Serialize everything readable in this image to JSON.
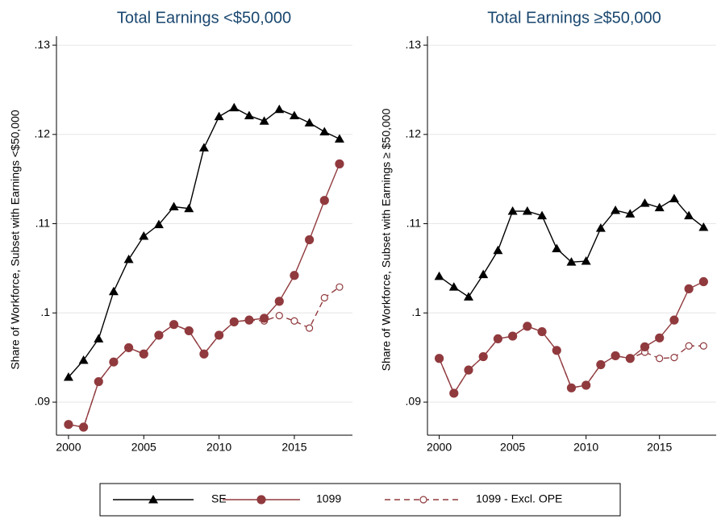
{
  "chart_data": [
    {
      "type": "line",
      "title": "Total Earnings <$50,000",
      "y_label": "Share of Workforce, Subset with Earnings <$50,000",
      "x": [
        2000,
        2001,
        2002,
        2003,
        2004,
        2005,
        2006,
        2007,
        2008,
        2009,
        2010,
        2011,
        2012,
        2013,
        2014,
        2015,
        2016,
        2017,
        2018
      ],
      "series": [
        {
          "name": "1099 - Excl. OPE",
          "color": "#903a3e",
          "marker": "hollow-circle",
          "dashed": true,
          "values": [
            0.0875,
            0.0872,
            0.0923,
            0.0945,
            0.0961,
            0.0954,
            0.0975,
            0.0987,
            0.098,
            0.0954,
            0.0975,
            0.099,
            0.0992,
            0.0991,
            0.0997,
            0.0991,
            0.0983,
            0.1017,
            0.1029
          ]
        },
        {
          "name": "1099",
          "color": "#903a3e",
          "marker": "circle",
          "dashed": false,
          "values": [
            0.0875,
            0.0872,
            0.0923,
            0.0945,
            0.0961,
            0.0954,
            0.0975,
            0.0987,
            0.098,
            0.0954,
            0.0975,
            0.099,
            0.0992,
            0.0994,
            0.1013,
            0.1042,
            0.1082,
            0.1126,
            0.1167
          ]
        },
        {
          "name": "SE",
          "color": "#000000",
          "marker": "triangle",
          "dashed": false,
          "values": [
            0.0928,
            0.0947,
            0.0971,
            0.1024,
            0.106,
            0.1086,
            0.1099,
            0.1119,
            0.1117,
            0.1185,
            0.122,
            0.123,
            0.1221,
            0.1215,
            0.1228,
            0.1221,
            0.1213,
            0.1203,
            0.1195
          ]
        }
      ],
      "xlim": [
        1999.2,
        2018.86
      ],
      "xticks": [
        2000,
        2005,
        2010,
        2015
      ],
      "ylim": [
        0.0863,
        0.131
      ],
      "yticks": [
        {
          "value": 0.09,
          "label": ".09"
        },
        {
          "value": 0.1,
          "label": ".1"
        },
        {
          "value": 0.11,
          "label": ".11"
        },
        {
          "value": 0.12,
          "label": ".12"
        },
        {
          "value": 0.13,
          "label": ".13"
        }
      ],
      "grid": true
    },
    {
      "type": "line",
      "title": "Total Earnings ≥$50,000",
      "y_label": "Share of Workforce, Subset with Earnings ≥ $50,000",
      "x": [
        2000,
        2001,
        2002,
        2003,
        2004,
        2005,
        2006,
        2007,
        2008,
        2009,
        2010,
        2011,
        2012,
        2013,
        2014,
        2015,
        2016,
        2017,
        2018
      ],
      "series": [
        {
          "name": "1099 - Excl. OPE",
          "color": "#903a3e",
          "marker": "hollow-circle",
          "dashed": true,
          "values": [
            0.0949,
            0.091,
            0.0936,
            0.0951,
            0.0971,
            0.0974,
            0.0985,
            0.0979,
            0.0958,
            0.0916,
            0.0919,
            0.0942,
            0.0952,
            0.0949,
            0.0956,
            0.0949,
            0.095,
            0.0963,
            0.0963
          ]
        },
        {
          "name": "1099",
          "color": "#903a3e",
          "marker": "circle",
          "dashed": false,
          "values": [
            0.0949,
            0.091,
            0.0936,
            0.0951,
            0.0971,
            0.0974,
            0.0985,
            0.0979,
            0.0958,
            0.0916,
            0.0919,
            0.0942,
            0.0952,
            0.0949,
            0.0962,
            0.0972,
            0.0992,
            0.1027,
            0.1035
          ]
        },
        {
          "name": "SE",
          "color": "#000000",
          "marker": "triangle",
          "dashed": false,
          "values": [
            0.1041,
            0.1029,
            0.1018,
            0.1043,
            0.107,
            0.1114,
            0.1114,
            0.1109,
            0.1072,
            0.1057,
            0.1058,
            0.1095,
            0.1115,
            0.1111,
            0.1123,
            0.1118,
            0.1128,
            0.1109,
            0.1096
          ]
        }
      ],
      "xlim": [
        1999.2,
        2018.86
      ],
      "xticks": [
        2000,
        2005,
        2010,
        2015
      ],
      "ylim": [
        0.0863,
        0.131
      ],
      "yticks": [
        {
          "value": 0.09,
          "label": ".09"
        },
        {
          "value": 0.1,
          "label": ".1"
        },
        {
          "value": 0.11,
          "label": ".11"
        },
        {
          "value": 0.12,
          "label": ".12"
        },
        {
          "value": 0.13,
          "label": ".13"
        }
      ],
      "grid": true
    }
  ]
}
